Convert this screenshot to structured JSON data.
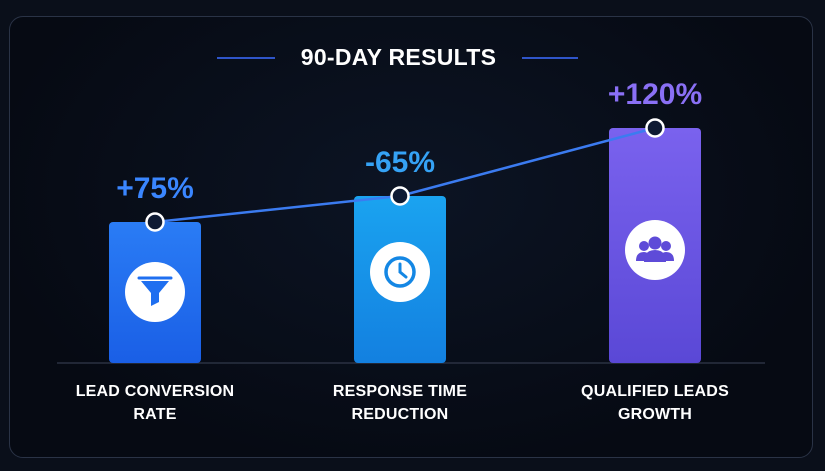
{
  "chart_data": {
    "type": "bar",
    "title": "90-DAY RESULTS",
    "categories": [
      "LEAD CONVERSION RATE",
      "RESPONSE TIME REDUCTION",
      "QUALIFIED LEADS GROWTH"
    ],
    "category_lines": [
      [
        "LEAD CONVERSION",
        "RATE"
      ],
      [
        "RESPONSE TIME",
        "REDUCTION"
      ],
      [
        "QUALIFIED LEADS",
        "GROWTH"
      ]
    ],
    "values": [
      75,
      65,
      120
    ],
    "value_labels": [
      "+75%",
      "-65%",
      "+120%"
    ],
    "icons": [
      "funnel-icon",
      "clock-icon",
      "users-icon"
    ],
    "colors": {
      "bar_1": "#1f6ff0",
      "bar_2": "#1592e8",
      "bar_3": "#6a55e0",
      "label_1": "#3a86ff",
      "label_2": "#35a2f5",
      "label_3": "#8a70f5",
      "trend_line": "#3b7bf0"
    },
    "ylim": [
      0,
      130
    ],
    "trend_line": true,
    "grid": false
  }
}
